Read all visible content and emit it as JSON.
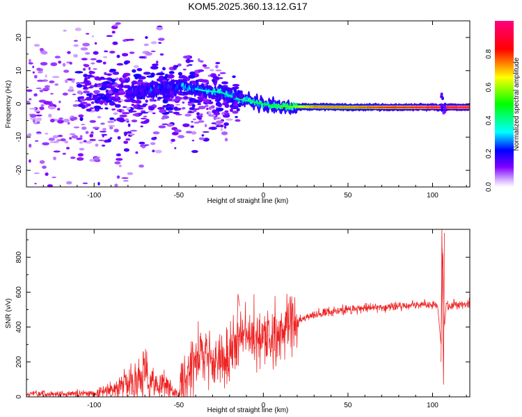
{
  "title": "KOM5.2025.360.13.12.G17",
  "chart_data": [
    {
      "type": "heatmap",
      "xlabel": "Height of straight line (km)",
      "ylabel": "Frequency (Hz)",
      "xlim": [
        -140,
        122
      ],
      "ylim": [
        -25,
        25
      ],
      "xticks": [
        -100,
        -50,
        0,
        50,
        100
      ],
      "yticks": [
        -20,
        -10,
        0,
        10,
        20
      ],
      "colorbar": {
        "label": "Normalized spectral amplitude",
        "range": [
          0,
          1
        ],
        "ticks": [
          0.0,
          0.2,
          0.4,
          0.6,
          0.8
        ]
      },
      "ridge": {
        "description_points": [
          {
            "x": -75,
            "y": 3.5,
            "amp": 0.2
          },
          {
            "x": -55,
            "y": 5.0,
            "amp": 0.25
          },
          {
            "x": -45,
            "y": 5.0,
            "amp": 0.35
          },
          {
            "x": -35,
            "y": 4.0,
            "amp": 0.35
          },
          {
            "x": -25,
            "y": 3.5,
            "amp": 0.4
          },
          {
            "x": -15,
            "y": 1.5,
            "amp": 0.4
          },
          {
            "x": -5,
            "y": 0.5,
            "amp": 0.45
          },
          {
            "x": 5,
            "y": -0.5,
            "amp": 0.5
          },
          {
            "x": 15,
            "y": -0.8,
            "amp": 0.55
          },
          {
            "x": 30,
            "y": -0.9,
            "amp": 0.75
          },
          {
            "x": 50,
            "y": -1.0,
            "amp": 0.75
          },
          {
            "x": 80,
            "y": -1.0,
            "amp": 0.85
          },
          {
            "x": 100,
            "y": -1.0,
            "amp": 0.95
          },
          {
            "x": 120,
            "y": -1.0,
            "amp": 0.95
          }
        ]
      }
    },
    {
      "type": "line",
      "xlabel": "Height of straight line (km)",
      "ylabel": "SNR (v/v)",
      "xlim": [
        -140,
        122
      ],
      "ylim": [
        0,
        960
      ],
      "xticks": [
        -100,
        -50,
        0,
        50,
        100
      ],
      "yticks": [
        0,
        200,
        400,
        600,
        800
      ],
      "series": [
        {
          "name": "SNR",
          "color": "#ee2222",
          "x": [
            -140,
            -120,
            -100,
            -90,
            -80,
            -70,
            -60,
            -50,
            -45,
            -40,
            -35,
            -30,
            -25,
            -20,
            -15,
            -10,
            -5,
            0,
            10,
            20,
            30,
            40,
            50,
            60,
            70,
            80,
            90,
            100,
            103,
            105,
            106,
            107,
            108,
            110,
            115,
            122
          ],
          "y": [
            15,
            15,
            20,
            40,
            80,
            120,
            70,
            20,
            110,
            230,
            260,
            220,
            230,
            250,
            330,
            330,
            350,
            340,
            380,
            430,
            470,
            490,
            500,
            510,
            515,
            520,
            525,
            530,
            520,
            300,
            850,
            400,
            520,
            525,
            530,
            535
          ]
        }
      ]
    }
  ]
}
